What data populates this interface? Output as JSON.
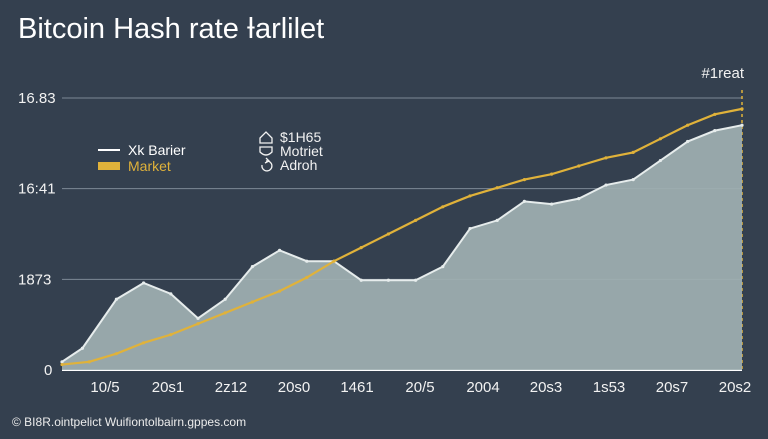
{
  "colors": {
    "background": "#34404f",
    "area_fill": "#9fb0b2",
    "area_edge": "#e6ecec",
    "price_line": "#e0b23a",
    "grid": "#7d8996"
  },
  "chart_data": {
    "type": "area",
    "title": "Bitcoin Hash rate Ɨarlilet",
    "corner_label": "#1reat",
    "y_ticks": [
      "16.83",
      "16:41",
      "1873",
      "0"
    ],
    "x_ticks": [
      "10/5",
      "20s1",
      "2z12",
      "20s0",
      "1461",
      "20/5",
      "2004",
      "20s3",
      "1s53",
      "20s7",
      "20s2"
    ],
    "legend": [
      {
        "label": "Xk Barier",
        "color": "#ffffff"
      },
      {
        "label": "Market",
        "color": "#e0b23a"
      }
    ],
    "annotations": [
      {
        "icon": "house-icon",
        "text": "$1H65"
      },
      {
        "icon": "shield-icon",
        "text": "Motriet"
      },
      {
        "icon": "refresh-icon",
        "text": "Adroh"
      }
    ],
    "ylim": [
      0,
      100
    ],
    "xlim": [
      0,
      100
    ],
    "series": [
      {
        "name": "Xk Barier",
        "x": [
          0,
          3,
          8,
          12,
          16,
          20,
          24,
          28,
          32,
          36,
          40,
          44,
          48,
          52,
          56,
          60,
          64,
          68,
          72,
          76,
          80,
          84,
          88,
          92,
          96,
          100
        ],
        "y": [
          3,
          8,
          26,
          32,
          28,
          19,
          26,
          38,
          44,
          40,
          40,
          33,
          33,
          33,
          38,
          52,
          55,
          62,
          61,
          63,
          68,
          70,
          77,
          84,
          88,
          90
        ]
      },
      {
        "name": "Market",
        "x": [
          0,
          4,
          8,
          12,
          16,
          20,
          24,
          28,
          32,
          36,
          40,
          44,
          48,
          52,
          56,
          60,
          64,
          68,
          72,
          76,
          80,
          84,
          88,
          92,
          96,
          100
        ],
        "y": [
          2,
          3,
          6,
          10,
          13,
          17,
          21,
          25,
          29,
          34,
          40,
          45,
          50,
          55,
          60,
          64,
          67,
          70,
          72,
          75,
          78,
          80,
          85,
          90,
          94,
          96
        ]
      }
    ]
  },
  "footer_text": "© BI8R.ointpelict Wuifiontolbairn.gppes.com"
}
